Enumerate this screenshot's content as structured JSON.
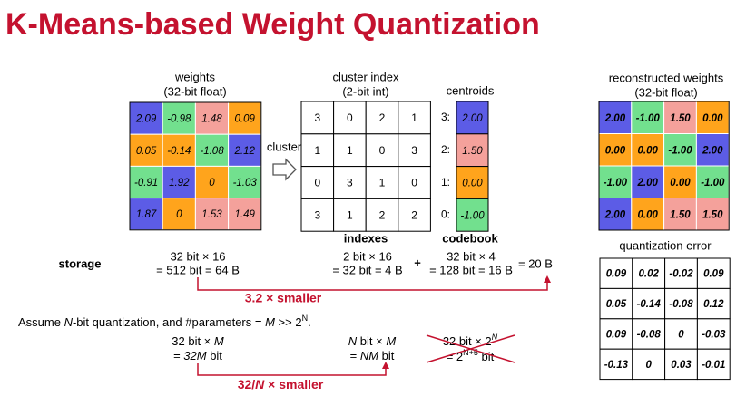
{
  "title": "K-Means-based Weight Quantization",
  "weights": {
    "label": [
      "weights",
      "(32-bit float)"
    ],
    "rows": [
      [
        "2.09",
        "-0.98",
        "1.48",
        "0.09"
      ],
      [
        "0.05",
        "-0.14",
        "-1.08",
        "2.12"
      ],
      [
        "-0.91",
        "1.92",
        "0",
        "-1.03"
      ],
      [
        "1.87",
        "0",
        "1.53",
        "1.49"
      ]
    ]
  },
  "cluster_label": "cluster",
  "cluster_index": {
    "label": [
      "cluster index",
      "(2-bit int)"
    ],
    "caption": "indexes",
    "rows": [
      [
        3,
        0,
        2,
        1
      ],
      [
        1,
        1,
        0,
        3
      ],
      [
        0,
        3,
        1,
        0
      ],
      [
        3,
        1,
        2,
        2
      ]
    ]
  },
  "centroids": {
    "label": "centroids",
    "caption": "codebook",
    "rows": [
      {
        "index": "3:",
        "value": "2.00",
        "color": "#5c5ce6"
      },
      {
        "index": "2:",
        "value": "1.50",
        "color": "#f4a19b"
      },
      {
        "index": "1:",
        "value": "0.00",
        "color": "#ffa41c"
      },
      {
        "index": "0:",
        "value": "-1.00",
        "color": "#72e08e"
      }
    ]
  },
  "reconstructed": {
    "label": [
      "reconstructed weights",
      "(32-bit float)"
    ],
    "rows": [
      [
        "2.00",
        "-1.00",
        "1.50",
        "0.00"
      ],
      [
        "0.00",
        "0.00",
        "-1.00",
        "2.00"
      ],
      [
        "-1.00",
        "2.00",
        "0.00",
        "-1.00"
      ],
      [
        "2.00",
        "0.00",
        "1.50",
        "1.50"
      ]
    ]
  },
  "storage": {
    "label": "storage",
    "weights": [
      "32 bit × 16",
      "= 512 bit = 64 B"
    ],
    "indexes": [
      "2 bit × 16",
      "= 32 bit = 4 B"
    ],
    "plus": "+",
    "codebook": [
      "32 bit × 4",
      "= 128 bit = 16 B"
    ],
    "total": "= 20 B",
    "saving": "3.2 × smaller"
  },
  "quantization_error": {
    "label": "quantization error",
    "rows": [
      [
        "0.09",
        "0.02",
        "-0.02",
        "0.09"
      ],
      [
        "0.05",
        "-0.14",
        "-0.08",
        "0.12"
      ],
      [
        "0.09",
        "-0.08",
        "0",
        "-0.03"
      ],
      [
        "-0.13",
        "0",
        "0.03",
        "-0.01"
      ]
    ]
  },
  "assumption": [
    "Assume ",
    "N",
    "-bit quantization, and #parameters = ",
    "M",
    " >> 2",
    "N",
    "."
  ],
  "scaling": {
    "weights": [
      [
        "32 bit × ",
        "M"
      ],
      [
        "= ",
        "32M",
        " bit"
      ]
    ],
    "indexes": [
      [
        "N",
        " bit × ",
        "M"
      ],
      [
        "= ",
        "NM",
        " bit"
      ]
    ],
    "codebook": [
      [
        "32 bit × 2",
        "N"
      ],
      [
        "= 2",
        "N+5",
        " bit"
      ]
    ],
    "saving": [
      "32/",
      "N",
      " × smaller"
    ]
  }
}
